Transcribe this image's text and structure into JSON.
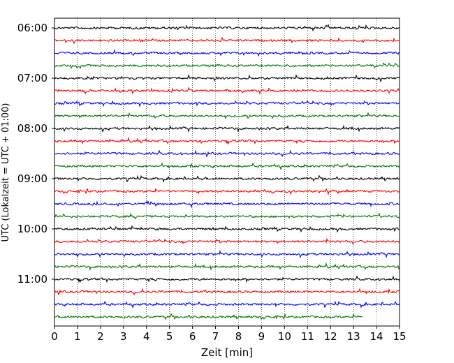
{
  "chart_data": {
    "type": "line",
    "title": "",
    "xlabel": "Zeit  [min]",
    "ylabel": "UTC (Lokalzeit = UTC + 01:00)",
    "xlim": [
      0,
      15
    ],
    "x_ticks": [
      "0",
      "1",
      "2",
      "3",
      "4",
      "5",
      "6",
      "7",
      "8",
      "9",
      "10",
      "11",
      "12",
      "13",
      "14",
      "15"
    ],
    "y_ticks": [
      "06:00",
      "07:00",
      "08:00",
      "09:00",
      "10:00",
      "11:00"
    ],
    "grid": "vertical dotted",
    "row_minutes": 15,
    "start_time": "06:00",
    "row_colors": [
      "#000000",
      "#ff0000",
      "#0000ff",
      "#007700"
    ],
    "rows": 24,
    "last_row_end_minute": 13.4,
    "legend": "none"
  }
}
